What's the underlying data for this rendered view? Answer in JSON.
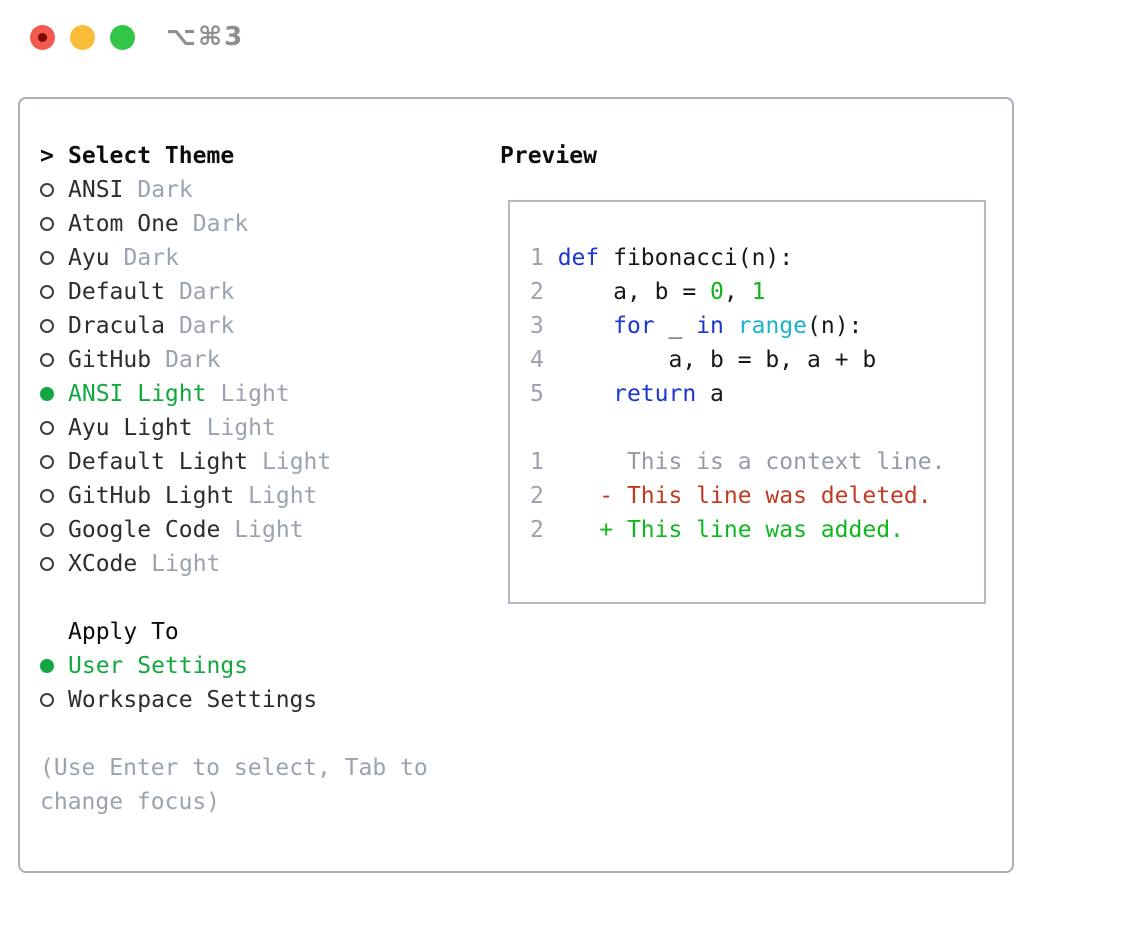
{
  "window": {
    "title": "⌥⌘3",
    "controls": [
      {
        "name": "close",
        "color": "#f15b4f",
        "dot": true
      },
      {
        "name": "minimize",
        "color": "#f8bc38",
        "dot": false
      },
      {
        "name": "zoom",
        "color": "#32c646",
        "dot": false
      }
    ]
  },
  "panel": {
    "select_theme": {
      "marker": ">",
      "label": "Select Theme"
    },
    "themes": [
      {
        "name": "ANSI",
        "variant": "Dark",
        "selected": false
      },
      {
        "name": "Atom One",
        "variant": "Dark",
        "selected": false
      },
      {
        "name": "Ayu",
        "variant": "Dark",
        "selected": false
      },
      {
        "name": "Default",
        "variant": "Dark",
        "selected": false
      },
      {
        "name": "Dracula",
        "variant": "Dark",
        "selected": false
      },
      {
        "name": "GitHub",
        "variant": "Dark",
        "selected": false
      },
      {
        "name": "ANSI Light",
        "variant": "Light",
        "selected": true
      },
      {
        "name": "Ayu Light",
        "variant": "Light",
        "selected": false
      },
      {
        "name": "Default Light",
        "variant": "Light",
        "selected": false
      },
      {
        "name": "GitHub Light",
        "variant": "Light",
        "selected": false
      },
      {
        "name": "Google Code",
        "variant": "Light",
        "selected": false
      },
      {
        "name": "XCode",
        "variant": "Light",
        "selected": false
      }
    ],
    "apply_to": {
      "label": "Apply To",
      "options": [
        {
          "label": "User Settings",
          "selected": true
        },
        {
          "label": "Workspace Settings",
          "selected": false
        }
      ]
    },
    "hint_lines": [
      "(Use Enter to select, Tab to",
      "change focus)"
    ]
  },
  "preview": {
    "label": "Preview",
    "lines": [
      [
        {
          "t": "1 ",
          "c": "num"
        },
        {
          "t": "def",
          "c": "kw"
        },
        {
          "t": " fibonacci(n):",
          "c": "plain"
        }
      ],
      [
        {
          "t": "2",
          "c": "num"
        },
        {
          "t": "     a, b = ",
          "c": "plain"
        },
        {
          "t": "0",
          "c": "green"
        },
        {
          "t": ", ",
          "c": "plain"
        },
        {
          "t": "1",
          "c": "green"
        }
      ],
      [
        {
          "t": "3",
          "c": "num"
        },
        {
          "t": "     ",
          "c": "plain"
        },
        {
          "t": "for",
          "c": "kw"
        },
        {
          "t": " _ ",
          "c": "plain"
        },
        {
          "t": "in",
          "c": "kw"
        },
        {
          "t": " ",
          "c": "plain"
        },
        {
          "t": "range",
          "c": "cyan"
        },
        {
          "t": "(n):",
          "c": "plain"
        }
      ],
      [
        {
          "t": "4",
          "c": "num"
        },
        {
          "t": "         a, b = b, a + b",
          "c": "plain"
        }
      ],
      [
        {
          "t": "5",
          "c": "num"
        },
        {
          "t": "     ",
          "c": "plain"
        },
        {
          "t": "return",
          "c": "kw"
        },
        {
          "t": " a",
          "c": "plain"
        }
      ],
      [],
      [
        {
          "t": "1",
          "c": "num"
        },
        {
          "t": "      ",
          "c": "plain"
        },
        {
          "t": "This is a context line.",
          "c": "ctx"
        }
      ],
      [
        {
          "t": "2",
          "c": "num"
        },
        {
          "t": "    ",
          "c": "plain"
        },
        {
          "t": "- This line was deleted.",
          "c": "del"
        }
      ],
      [
        {
          "t": "2",
          "c": "num"
        },
        {
          "t": "    ",
          "c": "plain"
        },
        {
          "t": "+ This line was added.",
          "c": "add"
        }
      ]
    ]
  },
  "colors": {
    "accent-green": "#13a83f",
    "item-text": "#2b2d33",
    "muted": "#9aa3af",
    "header-text": "#0b0c10",
    "frame-border": "#a9b0bc",
    "preview-border": "#b2b9c3",
    "num": "#9aa2ae",
    "kw": "#1b36d1",
    "cyan": "#17b5c9",
    "green": "#11b31c",
    "plain": "#17181c",
    "ctx": "#949ba5",
    "del": "#c23a22",
    "add": "#10b81f",
    "radio-ring": "#3d3f46",
    "title-gray": "#8d8e92",
    "tl-red-dot": "#7b0c04"
  }
}
